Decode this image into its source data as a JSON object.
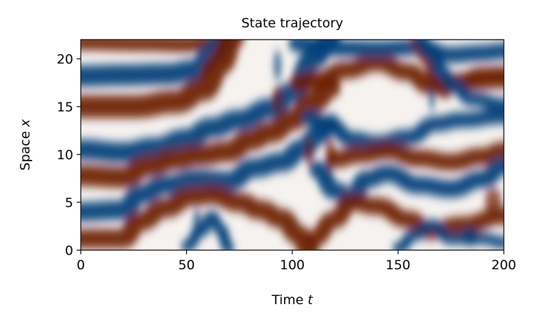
{
  "chart_data": {
    "type": "heatmap",
    "title": "State trajectory",
    "xlabel": {
      "text": "Time ",
      "var": "t"
    },
    "ylabel": {
      "text": "Space ",
      "var": "x"
    },
    "xlim": [
      0,
      200
    ],
    "ylim": [
      0,
      22
    ],
    "xticks": [
      0,
      50,
      100,
      150,
      200
    ],
    "yticks": [
      0,
      5,
      10,
      15,
      20
    ],
    "xtick_labels": [
      "0",
      "50",
      "100",
      "150",
      "200"
    ],
    "ytick_labels": [
      "0",
      "5",
      "10",
      "15",
      "20"
    ],
    "colormap": "RdBu (reversed: blue = low, red = high)",
    "grid": false,
    "legend": "none",
    "colors": {
      "low": "#063d78",
      "mid": "#f5f2ef",
      "high": "#6b1b07"
    }
  }
}
